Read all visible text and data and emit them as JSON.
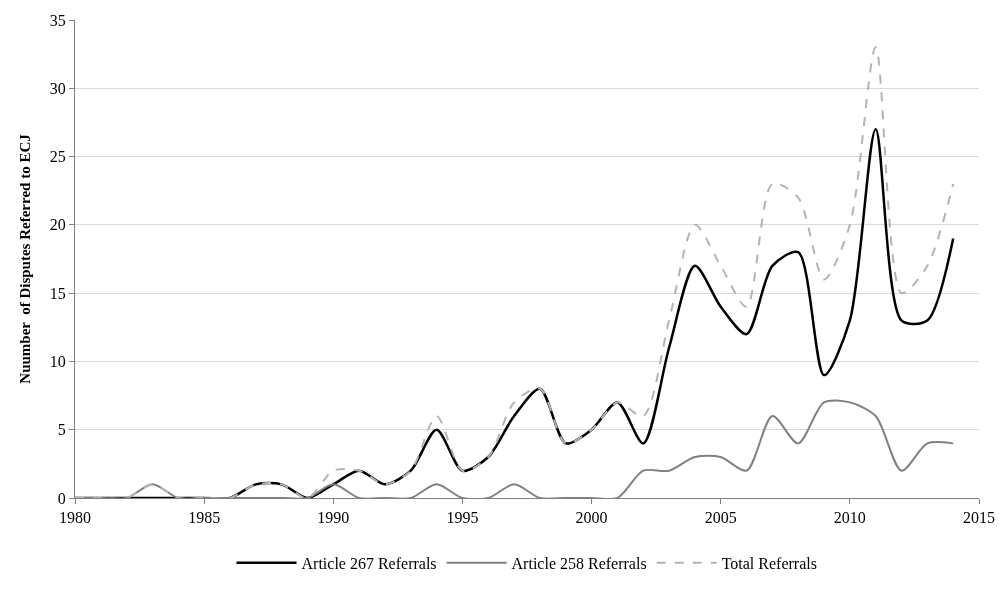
{
  "chart_data": {
    "type": "line",
    "ylabel": "Nuumber  of Disputes Referred to ECJ",
    "x": [
      1980,
      1981,
      1982,
      1983,
      1984,
      1985,
      1986,
      1987,
      1988,
      1989,
      1990,
      1991,
      1992,
      1993,
      1994,
      1995,
      1996,
      1997,
      1998,
      1999,
      2000,
      2001,
      2002,
      2003,
      2004,
      2005,
      2006,
      2007,
      2008,
      2009,
      2010,
      2011,
      2012,
      2013,
      2014
    ],
    "series": [
      {
        "name": "Article 267 Referrals",
        "color": "#000000",
        "line_style": "solid",
        "values": [
          0,
          0,
          0,
          0,
          0,
          0,
          0,
          1,
          1,
          0,
          1,
          2,
          1,
          2,
          5,
          2,
          3,
          6,
          8,
          4,
          5,
          7,
          4,
          11,
          17,
          14,
          12,
          17,
          18,
          9,
          13,
          27,
          13,
          13,
          19
        ]
      },
      {
        "name": "Article 258 Referrals",
        "color": "#808080",
        "line_style": "solid",
        "values": [
          0,
          0,
          0,
          1,
          0,
          0,
          0,
          0,
          0,
          0,
          1,
          0,
          0,
          0,
          1,
          0,
          0,
          1,
          0,
          0,
          0,
          0,
          2,
          2,
          3,
          3,
          2,
          6,
          4,
          7,
          7,
          6,
          2,
          4,
          4
        ]
      },
      {
        "name": "Total Referrals",
        "color": "#b4b4b4",
        "line_style": "dashed",
        "values": [
          0,
          0,
          0,
          1,
          0,
          0,
          0,
          1,
          1,
          0,
          2,
          2,
          1,
          2,
          6,
          2,
          3,
          7,
          8,
          4,
          5,
          7,
          6,
          13,
          20,
          17,
          14,
          23,
          22,
          16,
          20,
          33,
          15,
          17,
          23
        ]
      }
    ],
    "xlim": [
      1980,
      2015
    ],
    "xticks": [
      1980,
      1985,
      1990,
      1995,
      2000,
      2005,
      2010,
      2015
    ],
    "ylim": [
      0,
      35
    ],
    "yticks": [
      0,
      5,
      10,
      15,
      20,
      25,
      30,
      35
    ],
    "grid": "y",
    "legend": "bottom",
    "marker": "none"
  }
}
